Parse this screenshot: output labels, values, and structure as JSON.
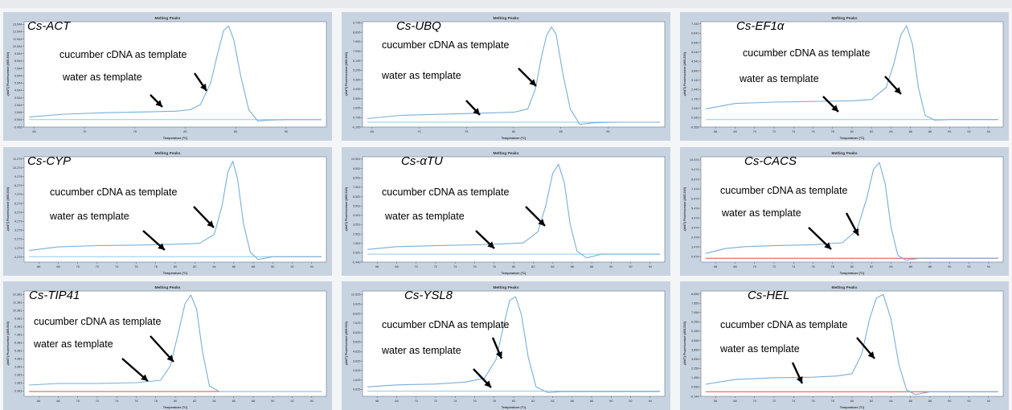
{
  "common": {
    "panel_title": "Melting Peaks",
    "xlabel": "Temperature (°C)",
    "ylabel": "-(d/dT) Fluorescence (465-510)",
    "label_cdna": "cucumber cDNA as template",
    "label_water": "water as template",
    "colors": {
      "cdna": "#7aaed6",
      "water_blue": "#8fcbe6",
      "water_red": "#e04848",
      "frame": "#c7d3e0"
    }
  },
  "chart_data": [
    {
      "type": "line",
      "gene": "Cs-ACT",
      "x_ticks": [
        "65",
        "70",
        "75",
        "80",
        "85",
        "90"
      ],
      "x_range": [
        64,
        94
      ],
      "y_ticks": [
        "13.544",
        "12.544",
        "11.544",
        "10.544",
        "9.544",
        "8.544",
        "7.544",
        "6.544",
        "5.544",
        "4.544",
        "3.544",
        "2.544",
        "1.544",
        "0.544",
        "-0.456"
      ],
      "y_range": [
        -0.456,
        13.9
      ],
      "series": [
        {
          "id": "cdna",
          "x": [
            64.5,
            68,
            72,
            76,
            79,
            80.5,
            81.5,
            82.5,
            83.2,
            83.8,
            84.3,
            84.8,
            85.5,
            86.3,
            87.2,
            88.5,
            90,
            93.5
          ],
          "y": [
            0.9,
            1.3,
            1.5,
            1.6,
            1.7,
            1.9,
            2.6,
            5.5,
            9.5,
            12.7,
            13.3,
            11.5,
            6.5,
            1.9,
            0.35,
            0.5,
            0.55,
            0.55
          ]
        },
        {
          "id": "water",
          "x": [
            64.5,
            93.5
          ],
          "y": [
            0.55,
            0.55
          ]
        }
      ]
    },
    {
      "type": "line",
      "gene": "Cs-UBQ",
      "x_ticks": [
        "65",
        "70",
        "75",
        "80",
        "85",
        "90"
      ],
      "x_range": [
        64,
        96
      ],
      "y_ticks": [
        "9.795",
        "8.895",
        "7.995",
        "7.095",
        "6.195",
        "5.295",
        "4.395",
        "3.495",
        "2.595",
        "1.695",
        "0.795",
        "-0.105"
      ],
      "y_range": [
        -0.105,
        9.9
      ],
      "series": [
        {
          "id": "cdna",
          "x": [
            64.5,
            68,
            72,
            76,
            80,
            81.5,
            82.3,
            83,
            83.5,
            84,
            84.5,
            85.2,
            86,
            87,
            88.5,
            91,
            95.5
          ],
          "y": [
            0.7,
            1.0,
            1.1,
            1.2,
            1.3,
            1.6,
            3.5,
            6.8,
            8.6,
            9.4,
            8.7,
            5.0,
            1.6,
            0.15,
            0.3,
            0.35,
            0.35
          ]
        },
        {
          "id": "water",
          "x": [
            64.5,
            95.5
          ],
          "y": [
            0.35,
            0.35
          ]
        }
      ]
    },
    {
      "type": "line",
      "gene": "Cs-EF1α",
      "x_ticks": [
        "66",
        "68",
        "70",
        "72",
        "74",
        "76",
        "78",
        "80",
        "82",
        "84",
        "86",
        "88",
        "90",
        "92",
        "94"
      ],
      "x_range": [
        64.5,
        95.5
      ],
      "y_ticks": [
        "7.342",
        "6.642",
        "5.942",
        "5.242",
        "4.542",
        "3.842",
        "3.142",
        "2.442",
        "1.742",
        "1.042",
        "0.342",
        "-0.358"
      ],
      "y_range": [
        -0.358,
        7.5
      ],
      "series": [
        {
          "id": "cdna",
          "x": [
            65,
            68,
            72,
            76,
            80,
            82,
            83.5,
            84.3,
            85,
            85.6,
            86.2,
            86.8,
            87.5,
            88.5,
            90,
            95
          ],
          "y": [
            1.0,
            1.4,
            1.5,
            1.55,
            1.6,
            1.7,
            2.6,
            4.4,
            6.5,
            7.2,
            5.8,
            2.6,
            0.5,
            0.15,
            0.2,
            0.2
          ]
        },
        {
          "id": "water",
          "x": [
            65,
            95
          ],
          "y": [
            0.2,
            0.2
          ]
        }
      ]
    },
    {
      "type": "line",
      "gene": "Cs-CYP",
      "x_ticks": [
        "66",
        "68",
        "70",
        "72",
        "74",
        "76",
        "78",
        "80",
        "82",
        "84",
        "86",
        "88",
        "90",
        "92",
        "94"
      ],
      "x_range": [
        64.5,
        95.5
      ],
      "y_ticks": [
        "11.279",
        "10.279",
        "9.279",
        "8.279",
        "7.279",
        "6.279",
        "5.279",
        "4.279",
        "3.279",
        "2.279",
        "1.279",
        "0.279"
      ],
      "y_range": [
        -0.3,
        11.5
      ],
      "series": [
        {
          "id": "cdna",
          "x": [
            65,
            68,
            72,
            76,
            80,
            82.5,
            84,
            84.8,
            85.4,
            85.9,
            86.4,
            87,
            87.7,
            88.5,
            90,
            95
          ],
          "y": [
            1.0,
            1.4,
            1.55,
            1.6,
            1.7,
            1.8,
            2.8,
            6.0,
            9.8,
            11.0,
            9.0,
            4.0,
            0.8,
            0.0,
            0.3,
            0.3
          ]
        },
        {
          "id": "water",
          "x": [
            65,
            95
          ],
          "y": [
            0.3,
            0.3
          ]
        }
      ]
    },
    {
      "type": "line",
      "gene": "Cs-αTU",
      "x_ticks": [
        "66",
        "68",
        "70",
        "72",
        "74",
        "76",
        "78",
        "80",
        "82",
        "84",
        "86",
        "88",
        "90",
        "92",
        "94"
      ],
      "x_range": [
        64.5,
        95.5
      ],
      "y_ticks": [
        "10.551",
        "9.551",
        "8.551",
        "7.551",
        "6.551",
        "5.551",
        "4.551",
        "3.551",
        "2.551",
        "1.551",
        "0.551",
        "-0.449"
      ],
      "y_range": [
        -0.449,
        10.8
      ],
      "series": [
        {
          "id": "cdna",
          "x": [
            65,
            68,
            72,
            76,
            79,
            81,
            82.5,
            83.3,
            84,
            84.6,
            85.2,
            85.8,
            86.5,
            87.5,
            89,
            95
          ],
          "y": [
            0.9,
            1.2,
            1.3,
            1.4,
            1.5,
            1.6,
            2.8,
            5.6,
            9.0,
            10.0,
            8.0,
            3.6,
            0.7,
            0.0,
            0.4,
            0.4
          ]
        },
        {
          "id": "water",
          "x": [
            65,
            95
          ],
          "y": [
            0.4,
            0.4
          ]
        }
      ]
    },
    {
      "type": "line",
      "gene": "Cs-CACS",
      "x_ticks": [
        "66",
        "68",
        "70",
        "72",
        "74",
        "76",
        "78",
        "80",
        "82",
        "84",
        "86",
        "88",
        "90",
        "92",
        "94"
      ],
      "x_range": [
        64.5,
        95.5
      ],
      "y_ticks": [
        "10.474",
        "9.474",
        "8.474",
        "7.474",
        "6.474",
        "5.474",
        "4.474",
        "3.474",
        "2.474",
        "1.474",
        "0.474"
      ],
      "y_range": [
        -0.1,
        10.8
      ],
      "series": [
        {
          "id": "cdna",
          "x": [
            65,
            67,
            69,
            72,
            76,
            79,
            80.5,
            81.5,
            82.2,
            82.8,
            83.4,
            84,
            84.7,
            85.5,
            87,
            95
          ],
          "y": [
            0.8,
            1.3,
            1.5,
            1.6,
            1.7,
            1.9,
            3.2,
            6.5,
            9.5,
            10.2,
            8.0,
            3.5,
            0.6,
            0.1,
            0.3,
            0.3
          ]
        },
        {
          "id": "water",
          "x": [
            65,
            95
          ],
          "y": [
            0.3,
            0.3
          ]
        }
      ]
    },
    {
      "type": "line",
      "gene": "Cs-TIP41",
      "x_ticks": [
        "66",
        "68",
        "70",
        "72",
        "74",
        "76",
        "78",
        "80",
        "82",
        "84",
        "86",
        "88",
        "90",
        "92",
        "94"
      ],
      "x_range": [
        64.5,
        95.5
      ],
      "y_ticks": [
        "12.381",
        "11.381",
        "10.381",
        "9.381",
        "8.381",
        "7.381",
        "6.381",
        "5.381",
        "4.381",
        "3.381",
        "2.381",
        "1.381",
        "0.381"
      ],
      "y_range": [
        -0.3,
        12.8
      ],
      "series": [
        {
          "id": "cdna",
          "x": [
            65,
            68,
            72,
            76,
            78.5,
            79.5,
            80.3,
            81,
            81.6,
            82.2,
            82.8,
            83.5,
            84.5,
            86,
            95
          ],
          "y": [
            1.1,
            1.3,
            1.3,
            1.4,
            1.7,
            3.5,
            7.5,
            11.2,
            12.3,
            10.5,
            5.2,
            1.0,
            0.3,
            0.3,
            0.3
          ]
        },
        {
          "id": "water",
          "x": [
            65,
            95
          ],
          "y": [
            0.3,
            0.3
          ]
        }
      ]
    },
    {
      "type": "line",
      "gene": "Cs-YSL8",
      "x_ticks": [
        "66",
        "68",
        "70",
        "72",
        "74",
        "76",
        "78",
        "80",
        "82",
        "84",
        "86",
        "88",
        "90",
        "92",
        "94"
      ],
      "x_range": [
        64.5,
        95.5
      ],
      "y_ticks": [
        "10.625",
        "9.625",
        "8.625",
        "7.625",
        "6.625",
        "5.625",
        "4.625",
        "3.625",
        "2.625",
        "1.625",
        "0.625"
      ],
      "y_range": [
        -0.1,
        11.0
      ],
      "series": [
        {
          "id": "cdna",
          "x": [
            65,
            68,
            72,
            75,
            77,
            78.2,
            79,
            79.6,
            80.2,
            80.8,
            81.5,
            82.3,
            83.5,
            85,
            95
          ],
          "y": [
            0.9,
            1.1,
            1.2,
            1.4,
            1.8,
            3.8,
            7.5,
            10.0,
            10.4,
            8.5,
            4.0,
            0.9,
            0.3,
            0.4,
            0.4
          ]
        },
        {
          "id": "water",
          "x": [
            65,
            95
          ],
          "y": [
            0.45,
            0.45
          ]
        }
      ]
    },
    {
      "type": "line",
      "gene": "Cs-HEL",
      "x_ticks": [
        "66",
        "68",
        "70",
        "72",
        "74",
        "76",
        "78",
        "80",
        "82",
        "84",
        "86",
        "88",
        "90",
        "92",
        "94"
      ],
      "x_range": [
        64.5,
        95.5
      ],
      "y_ticks": [
        "8.656",
        "7.856",
        "7.056",
        "6.256",
        "5.456",
        "4.656",
        "3.856",
        "3.056",
        "2.256",
        "1.456",
        "0.656",
        "-0.144"
      ],
      "y_range": [
        -0.144,
        8.9
      ],
      "series": [
        {
          "id": "cdna",
          "x": [
            65,
            68,
            72,
            76,
            78.5,
            80,
            81,
            81.8,
            82.5,
            83.2,
            84,
            84.8,
            85.6,
            86.5,
            88,
            95
          ],
          "y": [
            0.9,
            1.3,
            1.45,
            1.5,
            1.6,
            1.8,
            3.5,
            6.5,
            8.3,
            8.6,
            6.5,
            2.6,
            0.4,
            0.0,
            0.25,
            0.25
          ]
        },
        {
          "id": "water",
          "x": [
            65,
            95
          ],
          "y": [
            0.25,
            0.25
          ]
        }
      ]
    }
  ]
}
